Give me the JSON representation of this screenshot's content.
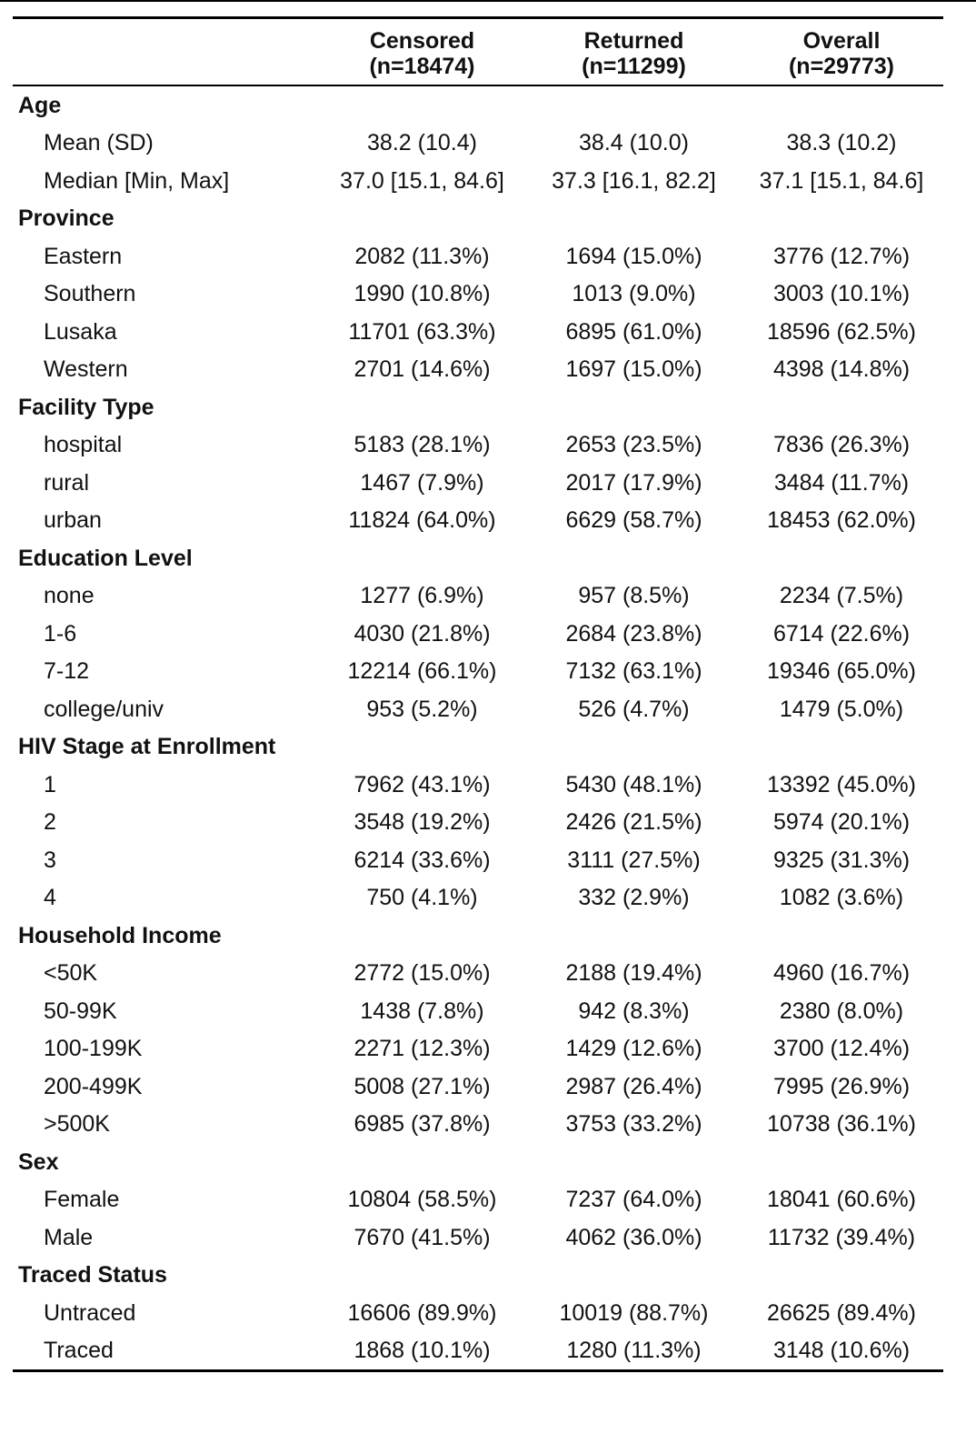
{
  "header": {
    "columns": [
      {
        "name": "Censored",
        "n": "(n=18474)"
      },
      {
        "name": "Returned",
        "n": "(n=11299)"
      },
      {
        "name": "Overall",
        "n": "(n=29773)"
      }
    ]
  },
  "groups": [
    {
      "title": "Age",
      "rows": [
        {
          "label": "Mean (SD)",
          "values": [
            "38.2 (10.4)",
            "38.4 (10.0)",
            "38.3 (10.2)"
          ]
        },
        {
          "label": "Median [Min, Max]",
          "values": [
            "37.0 [15.1, 84.6]",
            "37.3 [16.1, 82.2]",
            "37.1 [15.1, 84.6]"
          ]
        }
      ]
    },
    {
      "title": "Province",
      "rows": [
        {
          "label": "Eastern",
          "values": [
            "2082 (11.3%)",
            "1694 (15.0%)",
            "3776 (12.7%)"
          ]
        },
        {
          "label": "Southern",
          "values": [
            "1990 (10.8%)",
            "1013 (9.0%)",
            "3003 (10.1%)"
          ]
        },
        {
          "label": "Lusaka",
          "values": [
            "11701 (63.3%)",
            "6895 (61.0%)",
            "18596 (62.5%)"
          ]
        },
        {
          "label": "Western",
          "values": [
            "2701 (14.6%)",
            "1697 (15.0%)",
            "4398 (14.8%)"
          ]
        }
      ]
    },
    {
      "title": "Facility Type",
      "rows": [
        {
          "label": "hospital",
          "values": [
            "5183 (28.1%)",
            "2653 (23.5%)",
            "7836 (26.3%)"
          ]
        },
        {
          "label": "rural",
          "values": [
            "1467 (7.9%)",
            "2017 (17.9%)",
            "3484 (11.7%)"
          ]
        },
        {
          "label": "urban",
          "values": [
            "11824 (64.0%)",
            "6629 (58.7%)",
            "18453 (62.0%)"
          ]
        }
      ]
    },
    {
      "title": "Education Level",
      "rows": [
        {
          "label": "none",
          "values": [
            "1277 (6.9%)",
            "957 (8.5%)",
            "2234 (7.5%)"
          ]
        },
        {
          "label": "1-6",
          "values": [
            "4030 (21.8%)",
            "2684 (23.8%)",
            "6714 (22.6%)"
          ]
        },
        {
          "label": "7-12",
          "values": [
            "12214 (66.1%)",
            "7132 (63.1%)",
            "19346 (65.0%)"
          ]
        },
        {
          "label": "college/univ",
          "values": [
            "953 (5.2%)",
            "526 (4.7%)",
            "1479 (5.0%)"
          ]
        }
      ]
    },
    {
      "title": "HIV Stage at Enrollment",
      "rows": [
        {
          "label": "1",
          "values": [
            "7962 (43.1%)",
            "5430 (48.1%)",
            "13392 (45.0%)"
          ]
        },
        {
          "label": "2",
          "values": [
            "3548 (19.2%)",
            "2426 (21.5%)",
            "5974 (20.1%)"
          ]
        },
        {
          "label": "3",
          "values": [
            "6214 (33.6%)",
            "3111 (27.5%)",
            "9325 (31.3%)"
          ]
        },
        {
          "label": "4",
          "values": [
            "750 (4.1%)",
            "332 (2.9%)",
            "1082 (3.6%)"
          ]
        }
      ]
    },
    {
      "title": "Household Income",
      "rows": [
        {
          "label": "<50K",
          "values": [
            "2772 (15.0%)",
            "2188 (19.4%)",
            "4960 (16.7%)"
          ]
        },
        {
          "label": "50-99K",
          "values": [
            "1438 (7.8%)",
            "942 (8.3%)",
            "2380 (8.0%)"
          ]
        },
        {
          "label": "100-199K",
          "values": [
            "2271 (12.3%)",
            "1429 (12.6%)",
            "3700 (12.4%)"
          ]
        },
        {
          "label": "200-499K",
          "values": [
            "5008 (27.1%)",
            "2987 (26.4%)",
            "7995 (26.9%)"
          ]
        },
        {
          "label": ">500K",
          "values": [
            "6985 (37.8%)",
            "3753 (33.2%)",
            "10738 (36.1%)"
          ]
        }
      ]
    },
    {
      "title": "Sex",
      "rows": [
        {
          "label": "Female",
          "values": [
            "10804 (58.5%)",
            "7237 (64.0%)",
            "18041 (60.6%)"
          ]
        },
        {
          "label": "Male",
          "values": [
            "7670 (41.5%)",
            "4062 (36.0%)",
            "11732 (39.4%)"
          ]
        }
      ]
    },
    {
      "title": "Traced Status",
      "rows": [
        {
          "label": "Untraced",
          "values": [
            "16606 (89.9%)",
            "10019 (88.7%)",
            "26625 (89.4%)"
          ]
        },
        {
          "label": "Traced",
          "values": [
            "1868 (10.1%)",
            "1280 (11.3%)",
            "3148 (10.6%)"
          ]
        }
      ]
    }
  ]
}
